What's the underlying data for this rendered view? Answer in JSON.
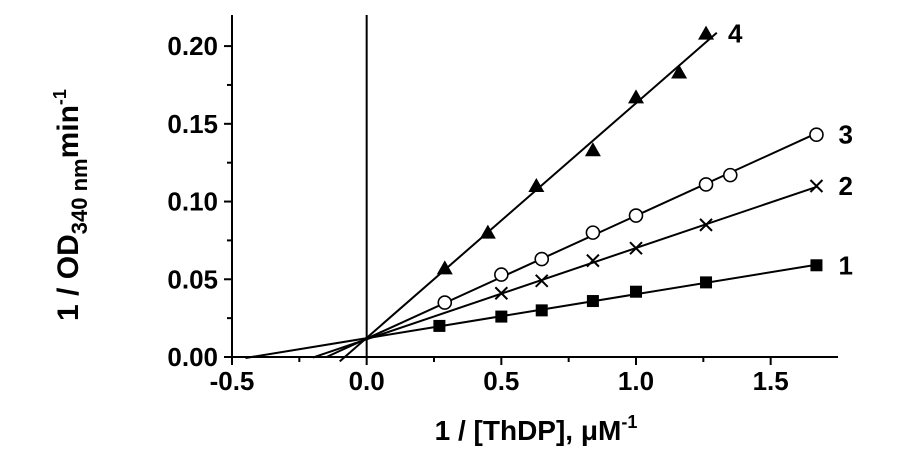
{
  "chart_data": {
    "type": "scatter",
    "xlabel": {
      "prefix": "1 / [ThDP], ",
      "unit": "μM",
      "exponent": "-1"
    },
    "ylabel": {
      "prefix": "1 / OD",
      "subscript": "340 nm",
      "suffix": "min",
      "exponent": "-1"
    },
    "xlim": [
      -0.5,
      1.75
    ],
    "ylim": [
      0.0,
      0.22
    ],
    "x_ticks": [
      -0.5,
      0.0,
      0.5,
      1.0,
      1.5
    ],
    "x_tick_labels": [
      "-0.5",
      "0.0",
      "0.5",
      "1.0",
      "1.5"
    ],
    "y_ticks": [
      0.0,
      0.05,
      0.1,
      0.15,
      0.2
    ],
    "y_tick_labels": [
      "0.00",
      "0.05",
      "0.10",
      "0.15",
      "0.20"
    ],
    "vertical_line_x": 0.0,
    "grid": false,
    "series": [
      {
        "name": "1",
        "marker": "square",
        "x": [
          0.27,
          0.5,
          0.65,
          0.84,
          1.0,
          1.26,
          1.67
        ],
        "y": [
          0.02,
          0.026,
          0.03,
          0.036,
          0.042,
          0.048,
          0.059
        ],
        "fit": {
          "x_start": -0.45,
          "x_end": 1.67,
          "slope": 0.0283,
          "intercept": 0.0121
        }
      },
      {
        "name": "2",
        "marker": "cross",
        "x": [
          0.5,
          0.65,
          0.84,
          1.0,
          1.26,
          1.67
        ],
        "y": [
          0.041,
          0.049,
          0.062,
          0.07,
          0.085,
          0.11
        ],
        "fit": {
          "x_start": -0.2,
          "x_end": 1.67,
          "slope": 0.0587,
          "intercept": 0.0114
        }
      },
      {
        "name": "3",
        "marker": "circle-open",
        "x": [
          0.29,
          0.5,
          0.65,
          0.84,
          1.0,
          1.26,
          1.35,
          1.67
        ],
        "y": [
          0.035,
          0.053,
          0.063,
          0.08,
          0.091,
          0.111,
          0.117,
          0.143
        ],
        "fit": {
          "x_start": -0.15,
          "x_end": 1.67,
          "slope": 0.0791,
          "intercept": 0.0118
        }
      },
      {
        "name": "4",
        "marker": "triangle",
        "x": [
          0.29,
          0.45,
          0.63,
          0.84,
          1.0,
          1.16,
          1.26
        ],
        "y": [
          0.057,
          0.08,
          0.11,
          0.133,
          0.167,
          0.183,
          0.208
        ],
        "fit": {
          "x_start": -0.1,
          "x_end": 1.3,
          "slope": 0.151,
          "intercept": 0.0123
        }
      }
    ]
  }
}
